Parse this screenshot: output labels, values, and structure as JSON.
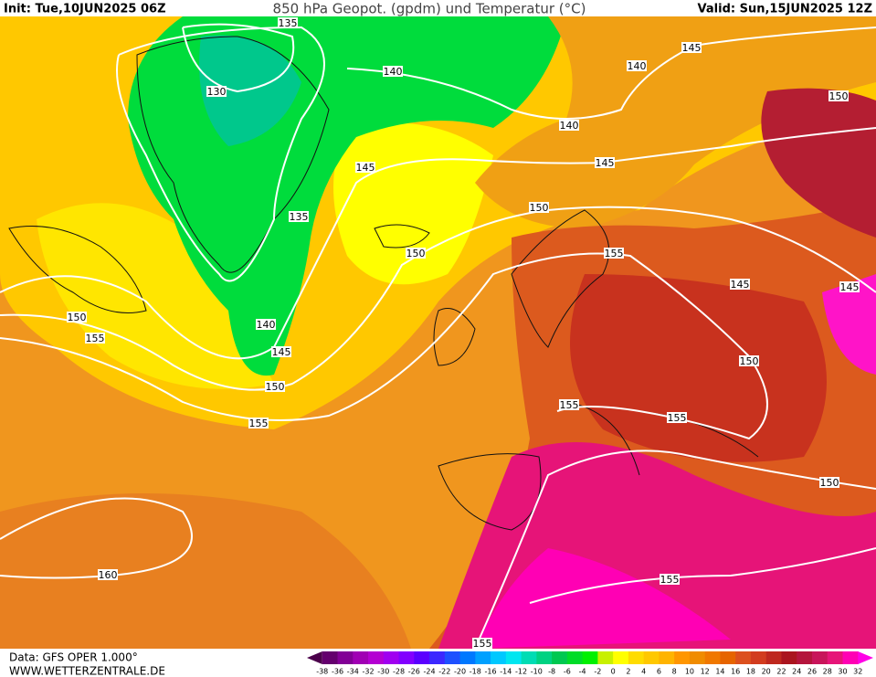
{
  "header": {
    "init": "Init: Tue,10JUN2025 06Z",
    "title": "850 hPa Geopot. (gpdm) und Temperatur (°C)",
    "valid": "Valid: Sun,15JUN2025 12Z"
  },
  "contour_labels": [
    135,
    130,
    140,
    140,
    140,
    145,
    150,
    145,
    145,
    135,
    150,
    150,
    155,
    145,
    145,
    150,
    155,
    140,
    145,
    150,
    150,
    155,
    155,
    155,
    150,
    160,
    155,
    155
  ],
  "footer": {
    "data": "Data: GFS OPER 1.000°",
    "site": "WWW.WETTERZENTRALE.DE"
  },
  "colorbar": {
    "labels": [
      -38,
      -36,
      -34,
      -32,
      -30,
      -28,
      -26,
      -24,
      -22,
      -20,
      -18,
      -16,
      -14,
      -12,
      -10,
      -8,
      -6,
      -4,
      -2,
      0,
      2,
      4,
      6,
      8,
      10,
      12,
      14,
      16,
      18,
      20,
      22,
      24,
      26,
      28,
      30,
      32
    ],
    "colors": [
      "#4b004b",
      "#64006e",
      "#820096",
      "#a000b4",
      "#b400d2",
      "#a000f0",
      "#8200ff",
      "#5a00ff",
      "#3c28ff",
      "#1e50ff",
      "#0078ff",
      "#00a0ff",
      "#00c8ff",
      "#00e6f0",
      "#00dcb4",
      "#00d282",
      "#00c850",
      "#00dc28",
      "#00f000",
      "#c8f000",
      "#ffff00",
      "#ffdc00",
      "#ffc800",
      "#ffb400",
      "#ff9600",
      "#f08c00",
      "#f07800",
      "#e66400",
      "#dc501e",
      "#d23c1e",
      "#be281e",
      "#aa141e",
      "#b4143c",
      "#c8145a",
      "#e61478",
      "#ff00b4",
      "#ff00e6"
    ]
  }
}
